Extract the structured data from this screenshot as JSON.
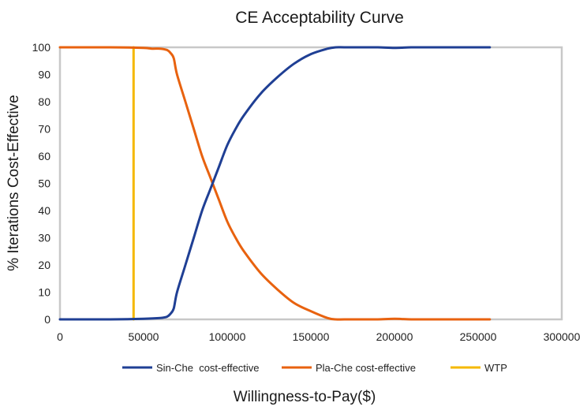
{
  "chart_data": {
    "type": "line",
    "title": "CE Acceptability Curve",
    "xlabel": "Willingness-to-Pay($)",
    "ylabel": "% Iterations Cost-Effective",
    "xlim": [
      0,
      300000
    ],
    "ylim": [
      0,
      100
    ],
    "xticks": [
      0,
      50000,
      100000,
      150000,
      200000,
      250000,
      300000
    ],
    "yticks": [
      0,
      10,
      20,
      30,
      40,
      50,
      60,
      70,
      80,
      90,
      100
    ],
    "grid": false,
    "legend_position": "bottom",
    "series": [
      {
        "name": "Sin-Che  cost-effective",
        "color": "#1f3f94",
        "x": [
          0,
          30000,
          50000,
          60000,
          64000,
          66000,
          68000,
          70000,
          75000,
          80000,
          85000,
          90000,
          95000,
          100000,
          105000,
          110000,
          120000,
          130000,
          140000,
          150000,
          160000,
          165000,
          170000,
          180000,
          190000,
          200000,
          210000,
          220000,
          230000,
          240000,
          257000
        ],
        "y": [
          0,
          0,
          0.2,
          0.5,
          1,
          2,
          4,
          10,
          20,
          30,
          40,
          48,
          56,
          64,
          70,
          75,
          83,
          89,
          94,
          97.5,
          99.5,
          100,
          100,
          100,
          100,
          99.8,
          100,
          100,
          100,
          100,
          100
        ]
      },
      {
        "name": "Pla-Che cost-effective",
        "color": "#e8620f",
        "x": [
          0,
          30000,
          50000,
          55000,
          60000,
          64000,
          66000,
          68000,
          70000,
          75000,
          80000,
          85000,
          90000,
          95000,
          100000,
          105000,
          110000,
          120000,
          130000,
          140000,
          150000,
          160000,
          165000,
          170000,
          180000,
          190000,
          200000,
          210000,
          220000,
          230000,
          240000,
          257000
        ],
        "y": [
          100,
          100,
          99.8,
          99.5,
          99.5,
          99,
          98,
          96,
          90,
          80,
          70,
          60,
          52,
          44,
          36,
          30,
          25,
          17,
          11,
          6,
          3,
          0.5,
          0,
          0,
          0,
          0,
          0.2,
          0,
          0,
          0,
          0,
          0
        ]
      },
      {
        "name": "WTP",
        "color": "#f5b800",
        "x": [
          44000,
          44000
        ],
        "y": [
          0,
          100
        ]
      }
    ]
  }
}
